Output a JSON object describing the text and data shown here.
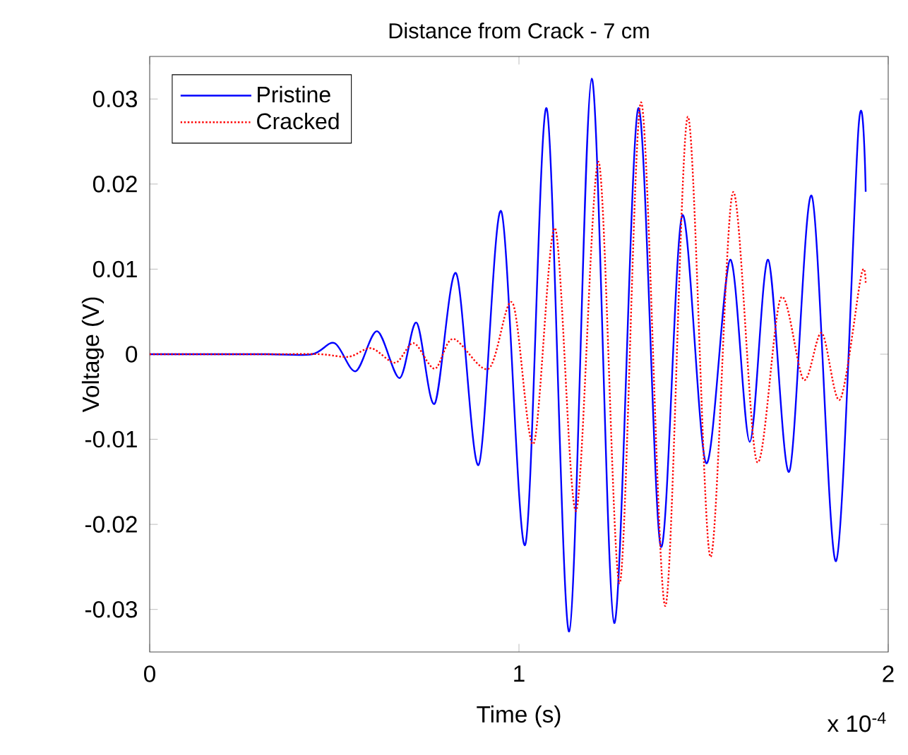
{
  "chart_data": {
    "type": "line",
    "title": "Distance from Crack - 7 cm",
    "xlabel": "Time (s)",
    "ylabel": "Voltage (V)",
    "xlim": [
      0,
      2
    ],
    "xticks": [
      0,
      1,
      2
    ],
    "ylim": [
      -0.035,
      0.035
    ],
    "yticks": [
      -0.03,
      -0.02,
      -0.01,
      0,
      0.01,
      0.02,
      0.03
    ],
    "legend": "top left",
    "grid": false,
    "annotations": [
      "x 10$^{-4}$"
    ],
    "series": [
      {
        "name": "Pristine",
        "color": "#0000ff",
        "line_style": "solid",
        "x": [
          0,
          0.168,
          0.321,
          0.44,
          0.501,
          0.558,
          0.616,
          0.677,
          0.723,
          0.772,
          0.83,
          0.891,
          0.952,
          1.017,
          1.075,
          1.136,
          1.197,
          1.258,
          1.323,
          1.384,
          1.442,
          1.507,
          1.572,
          1.625,
          1.675,
          1.732,
          1.793,
          1.859,
          1.92,
          1.939
        ],
        "values": [
          0,
          0,
          0,
          0,
          0.0013,
          -0.002,
          0.0027,
          -0.0028,
          0.0037,
          -0.0058,
          0.0095,
          -0.013,
          0.0168,
          -0.0224,
          0.0289,
          -0.0326,
          0.0324,
          -0.0316,
          0.0289,
          -0.0226,
          0.0163,
          -0.0128,
          0.0111,
          -0.0103,
          0.0111,
          -0.0138,
          0.0186,
          -0.0243,
          0.0269,
          0.0191
        ]
      },
      {
        "name": "Cracked",
        "color": "#ff0000",
        "line_style": "dotted",
        "x": [
          0,
          0.321,
          0.46,
          0.539,
          0.6,
          0.665,
          0.715,
          0.772,
          0.822,
          0.918,
          0.983,
          1.04,
          1.098,
          1.155,
          1.216,
          1.273,
          1.331,
          1.396,
          1.457,
          1.518,
          1.579,
          1.644,
          1.709,
          1.771,
          1.82,
          1.87,
          1.927,
          1.939
        ],
        "values": [
          0,
          0,
          0,
          -0.0003,
          0.0007,
          -0.001,
          0.0013,
          -0.0017,
          0.0018,
          -0.0017,
          0.006,
          -0.0105,
          0.0148,
          -0.0184,
          0.0226,
          -0.0269,
          0.0296,
          -0.0296,
          0.0279,
          -0.0238,
          0.019,
          -0.0126,
          0.0066,
          -0.003,
          0.0025,
          -0.0053,
          0.0093,
          0.0083
        ]
      }
    ]
  }
}
